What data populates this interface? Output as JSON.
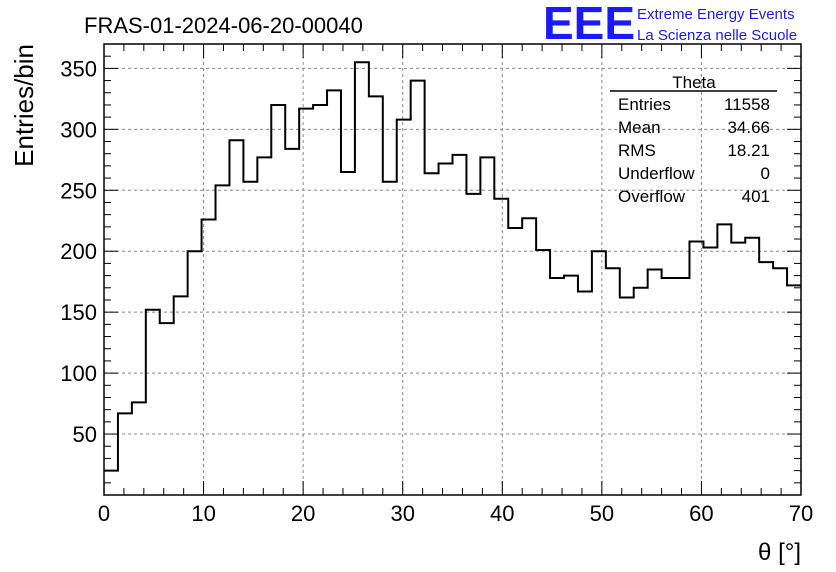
{
  "header": {
    "run_title": "FRAS-01-2024-06-20-00040",
    "logo_text": "EEE",
    "project_line1": "Extreme Energy Events",
    "project_line2": "La Scienza nelle Scuole"
  },
  "stats": {
    "title": "Theta",
    "rows": [
      {
        "label": "Entries",
        "value": "11558"
      },
      {
        "label": "Mean",
        "value": "34.66"
      },
      {
        "label": "RMS",
        "value": "18.21"
      },
      {
        "label": "Underflow",
        "value": "0"
      },
      {
        "label": "Overflow",
        "value": "401"
      }
    ]
  },
  "colors": {
    "logo": "#1a1aff",
    "line": "#000000",
    "grid": "#888888"
  },
  "chart_data": {
    "type": "histogram",
    "xlabel": "θ [°]",
    "ylabel": "Entries/bin",
    "xlim": [
      0,
      70
    ],
    "ylim": [
      0,
      370
    ],
    "bin_width": 1.4,
    "grid": true,
    "x_ticks": [
      0,
      10,
      20,
      30,
      40,
      50,
      60,
      70
    ],
    "y_ticks": [
      50,
      100,
      150,
      200,
      250,
      300,
      350
    ],
    "values": [
      20,
      67,
      76,
      152,
      141,
      163,
      200,
      226,
      254,
      291,
      257,
      277,
      320,
      284,
      317,
      320,
      332,
      265,
      355,
      327,
      257,
      308,
      340,
      264,
      272,
      279,
      247,
      277,
      243,
      219,
      227,
      201,
      178,
      180,
      167,
      200,
      186,
      162,
      170,
      185,
      178,
      178,
      208,
      203,
      222,
      207,
      211,
      191,
      186,
      172
    ]
  }
}
